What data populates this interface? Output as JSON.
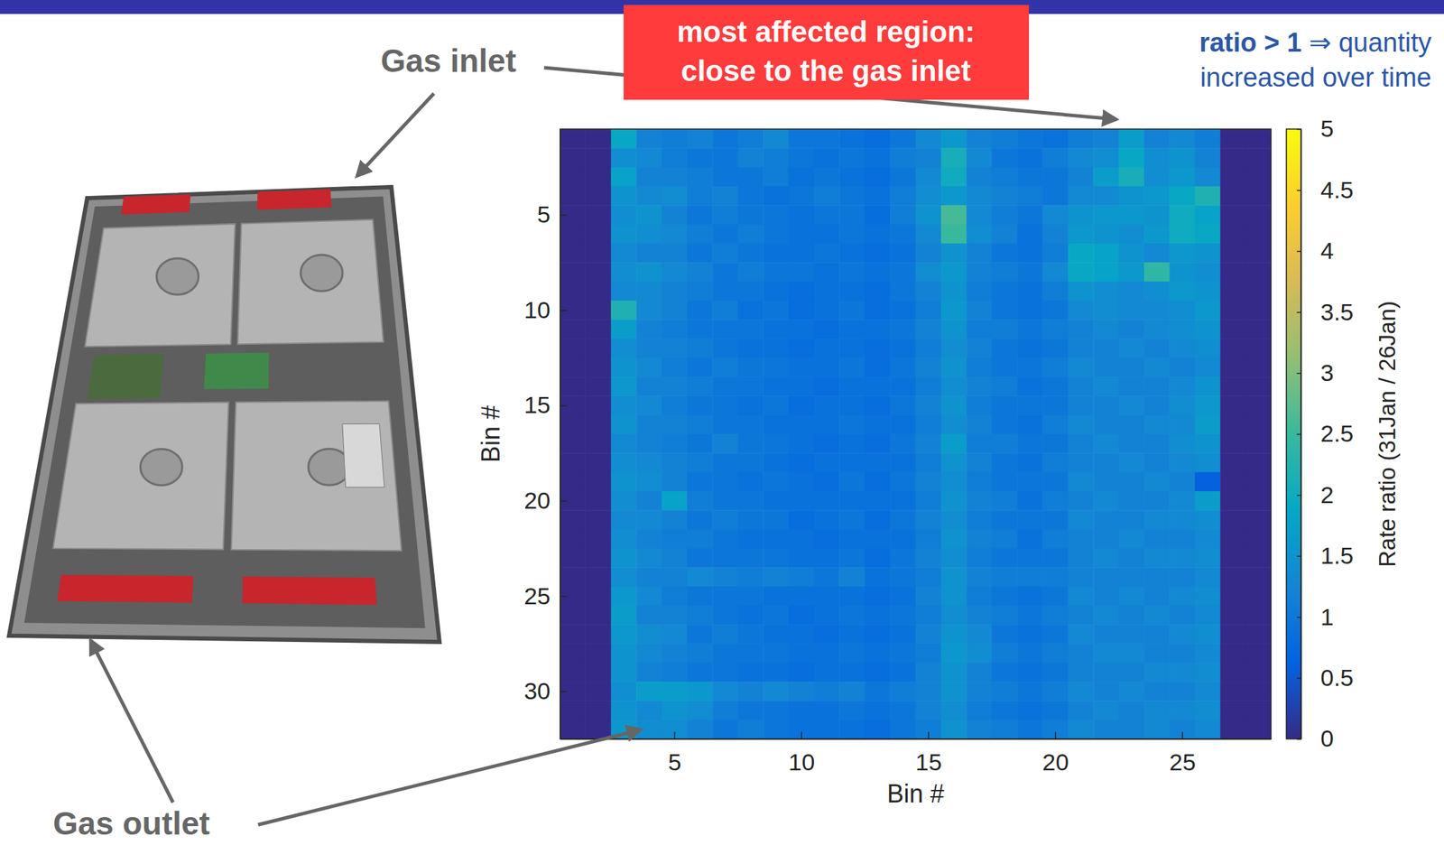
{
  "chart_data": {
    "type": "heatmap",
    "x_label": "Bin #",
    "y_label": "Bin #",
    "xlim": [
      0.5,
      28.5
    ],
    "ylim": [
      0.5,
      32.5
    ],
    "xticks": [
      5,
      10,
      15,
      20,
      25
    ],
    "yticks": [
      5,
      10,
      15,
      20,
      25,
      30
    ],
    "x": [
      1,
      2,
      3,
      4,
      5,
      6,
      7,
      8,
      9,
      10,
      11,
      12,
      13,
      14,
      15,
      16,
      17,
      18,
      19,
      20,
      21,
      22,
      23,
      24,
      25,
      26,
      27,
      28
    ],
    "y": [
      1,
      2,
      3,
      4,
      5,
      6,
      7,
      8,
      9,
      10,
      11,
      12,
      13,
      14,
      15,
      16,
      17,
      18,
      19,
      20,
      21,
      22,
      23,
      24,
      25,
      26,
      27,
      28,
      29,
      30,
      31,
      32
    ],
    "z": [
      [
        0,
        0,
        1.9,
        1.2,
        1.1,
        1.2,
        1.0,
        1.1,
        1.3,
        1.0,
        1.0,
        0.9,
        0.8,
        1.0,
        1.3,
        1.6,
        1.2,
        1.1,
        1.0,
        0.9,
        1.1,
        1.2,
        1.7,
        1.2,
        1.3,
        1.1,
        0,
        0
      ],
      [
        0,
        0,
        1.4,
        1.3,
        1.1,
        1.0,
        1.0,
        1.2,
        1.1,
        1.0,
        0.9,
        1.0,
        0.9,
        1.1,
        1.2,
        2.1,
        1.3,
        1.0,
        0.9,
        1.1,
        1.3,
        1.4,
        1.9,
        1.4,
        1.5,
        1.2,
        0,
        0
      ],
      [
        0,
        0,
        1.8,
        1.2,
        1.2,
        1.1,
        1.0,
        1.0,
        1.1,
        0.9,
        1.0,
        0.9,
        0.8,
        1.0,
        1.3,
        2.0,
        1.2,
        1.1,
        1.0,
        1.0,
        1.2,
        1.7,
        2.1,
        1.4,
        1.6,
        1.3,
        0,
        0
      ],
      [
        0,
        0,
        1.5,
        1.3,
        1.4,
        1.1,
        1.2,
        1.0,
        0.9,
        1.0,
        1.1,
        1.0,
        0.9,
        1.1,
        1.4,
        1.6,
        1.3,
        1.2,
        1.1,
        1.0,
        1.3,
        1.3,
        1.5,
        1.6,
        1.9,
        2.2,
        0,
        0
      ],
      [
        0,
        0,
        1.4,
        1.5,
        1.2,
        1.0,
        1.1,
        1.0,
        1.0,
        0.9,
        1.0,
        1.0,
        0.8,
        1.1,
        1.5,
        2.6,
        1.3,
        1.1,
        1.0,
        1.3,
        1.5,
        1.6,
        1.6,
        1.5,
        2.0,
        1.8,
        0,
        0
      ],
      [
        0,
        0,
        1.5,
        1.4,
        1.3,
        1.1,
        1.0,
        1.1,
        1.0,
        0.9,
        0.9,
        1.0,
        0.9,
        1.0,
        1.3,
        2.5,
        1.4,
        1.2,
        0.9,
        1.2,
        1.6,
        1.5,
        1.4,
        1.6,
        2.0,
        1.9,
        0,
        0
      ],
      [
        0,
        0,
        1.3,
        1.2,
        1.2,
        1.0,
        1.1,
        1.0,
        0.9,
        0.9,
        1.0,
        0.9,
        0.8,
        0.9,
        1.2,
        1.5,
        1.2,
        1.0,
        0.9,
        1.1,
        1.9,
        1.8,
        1.5,
        1.3,
        1.6,
        1.5,
        0,
        0
      ],
      [
        0,
        0,
        1.4,
        1.5,
        1.3,
        1.2,
        1.0,
        1.1,
        1.0,
        1.0,
        0.9,
        1.0,
        0.9,
        1.0,
        1.4,
        1.6,
        1.2,
        1.1,
        1.0,
        1.3,
        1.9,
        1.8,
        1.6,
        2.4,
        1.5,
        1.4,
        0,
        0
      ],
      [
        0,
        0,
        1.3,
        1.3,
        1.2,
        1.1,
        1.0,
        1.0,
        0.9,
        0.8,
        0.9,
        0.9,
        0.8,
        1.0,
        1.2,
        1.5,
        1.1,
        1.0,
        0.9,
        1.1,
        1.5,
        1.4,
        1.3,
        1.4,
        1.6,
        1.5,
        0,
        0
      ],
      [
        0,
        0,
        2.2,
        1.3,
        1.2,
        1.0,
        1.1,
        0.9,
        1.0,
        0.8,
        0.9,
        1.0,
        0.8,
        0.9,
        1.1,
        1.6,
        1.2,
        1.0,
        0.9,
        1.0,
        1.3,
        1.4,
        1.3,
        1.3,
        1.4,
        1.6,
        0,
        0
      ],
      [
        0,
        0,
        1.7,
        1.2,
        1.1,
        1.0,
        1.0,
        1.0,
        0.9,
        0.9,
        0.8,
        0.9,
        0.9,
        1.0,
        1.2,
        1.5,
        1.1,
        1.1,
        1.0,
        1.1,
        1.2,
        1.3,
        1.2,
        1.3,
        1.4,
        1.5,
        0,
        0
      ],
      [
        0,
        0,
        1.4,
        1.2,
        1.2,
        1.1,
        1.0,
        0.9,
        0.9,
        0.8,
        0.9,
        0.9,
        0.8,
        0.9,
        1.1,
        1.4,
        1.2,
        1.0,
        0.9,
        1.0,
        1.2,
        1.2,
        1.3,
        1.2,
        1.3,
        1.4,
        0,
        0
      ],
      [
        0,
        0,
        1.5,
        1.3,
        1.1,
        1.0,
        1.1,
        1.0,
        1.0,
        0.9,
        0.9,
        1.0,
        0.8,
        1.0,
        1.2,
        1.5,
        1.1,
        1.0,
        1.0,
        1.1,
        1.3,
        1.2,
        1.2,
        1.3,
        1.2,
        1.3,
        0,
        0
      ],
      [
        0,
        0,
        1.6,
        1.2,
        1.2,
        1.1,
        1.0,
        1.0,
        0.9,
        0.9,
        0.8,
        0.9,
        0.9,
        0.9,
        1.1,
        1.4,
        1.2,
        1.1,
        0.9,
        1.0,
        1.2,
        1.3,
        1.2,
        1.2,
        1.3,
        1.5,
        0,
        0
      ],
      [
        0,
        0,
        1.4,
        1.3,
        1.1,
        1.0,
        1.0,
        0.9,
        1.0,
        0.8,
        0.9,
        0.9,
        0.8,
        1.0,
        1.2,
        1.5,
        1.1,
        1.0,
        1.0,
        1.0,
        1.2,
        1.2,
        1.3,
        1.2,
        1.4,
        1.6,
        0,
        0
      ],
      [
        0,
        0,
        1.5,
        1.2,
        1.2,
        1.1,
        1.0,
        1.0,
        0.9,
        0.9,
        0.9,
        1.0,
        0.9,
        0.9,
        1.1,
        1.4,
        1.2,
        1.0,
        0.9,
        1.1,
        1.3,
        1.2,
        1.2,
        1.3,
        1.3,
        1.7,
        0,
        0
      ],
      [
        0,
        0,
        1.3,
        1.2,
        1.1,
        1.0,
        1.2,
        1.0,
        1.0,
        0.9,
        0.8,
        0.9,
        0.8,
        1.0,
        1.2,
        1.7,
        1.1,
        1.1,
        1.0,
        1.0,
        1.2,
        1.3,
        1.2,
        1.2,
        1.4,
        1.5,
        0,
        0
      ],
      [
        0,
        0,
        1.4,
        1.3,
        1.2,
        1.1,
        1.0,
        1.0,
        0.9,
        0.8,
        0.9,
        0.9,
        0.9,
        0.9,
        1.1,
        1.5,
        1.2,
        1.0,
        0.9,
        1.1,
        1.2,
        1.2,
        1.3,
        1.2,
        1.3,
        1.4,
        0,
        0
      ],
      [
        0,
        0,
        1.5,
        1.4,
        1.2,
        1.0,
        1.0,
        0.9,
        1.0,
        0.9,
        0.8,
        1.0,
        0.8,
        1.0,
        1.2,
        1.4,
        1.1,
        1.0,
        1.0,
        1.0,
        1.3,
        1.2,
        1.2,
        1.3,
        1.2,
        0.6,
        0,
        0
      ],
      [
        0,
        0,
        1.4,
        1.2,
        1.8,
        1.1,
        1.0,
        1.0,
        0.9,
        0.9,
        0.9,
        0.9,
        0.9,
        0.9,
        1.1,
        1.5,
        1.2,
        1.1,
        0.9,
        1.1,
        1.2,
        1.3,
        1.2,
        1.2,
        1.3,
        1.7,
        0,
        0
      ],
      [
        0,
        0,
        1.3,
        1.3,
        1.2,
        1.0,
        1.1,
        1.0,
        1.0,
        0.8,
        0.9,
        1.0,
        0.8,
        1.0,
        1.2,
        1.4,
        1.1,
        1.0,
        1.0,
        1.0,
        1.3,
        1.2,
        1.2,
        1.3,
        1.3,
        1.4,
        0,
        0
      ],
      [
        0,
        0,
        1.4,
        1.2,
        1.1,
        1.1,
        1.0,
        0.9,
        0.9,
        0.9,
        0.8,
        0.9,
        0.9,
        0.9,
        1.1,
        1.5,
        1.2,
        1.1,
        0.9,
        1.1,
        1.2,
        1.2,
        1.3,
        1.2,
        1.2,
        1.3,
        0,
        0
      ],
      [
        0,
        0,
        1.5,
        1.3,
        1.2,
        1.0,
        1.0,
        1.0,
        1.0,
        0.9,
        0.9,
        1.0,
        0.8,
        1.0,
        1.2,
        1.4,
        1.1,
        1.0,
        1.0,
        1.0,
        1.2,
        1.3,
        1.2,
        1.3,
        1.3,
        1.4,
        0,
        0
      ],
      [
        0,
        0,
        1.4,
        1.2,
        1.2,
        1.3,
        1.2,
        1.1,
        1.2,
        1.1,
        1.0,
        1.2,
        0.9,
        1.0,
        1.1,
        1.5,
        1.2,
        1.1,
        1.1,
        1.1,
        1.2,
        1.2,
        1.2,
        1.2,
        1.2,
        1.3,
        0,
        0
      ],
      [
        0,
        0,
        1.6,
        1.3,
        1.1,
        1.0,
        1.0,
        1.0,
        0.9,
        0.9,
        0.9,
        0.9,
        0.8,
        0.9,
        1.2,
        1.5,
        1.1,
        1.0,
        0.9,
        1.0,
        1.3,
        1.2,
        1.3,
        1.2,
        1.3,
        1.4,
        0,
        0
      ],
      [
        0,
        0,
        1.7,
        1.2,
        1.2,
        1.1,
        1.0,
        0.9,
        1.0,
        0.8,
        0.9,
        1.0,
        0.9,
        1.0,
        1.1,
        1.4,
        1.2,
        1.1,
        1.0,
        1.1,
        1.2,
        1.3,
        1.2,
        1.3,
        1.2,
        1.3,
        0,
        0
      ],
      [
        0,
        0,
        1.6,
        1.4,
        1.3,
        1.0,
        1.1,
        1.0,
        0.9,
        0.9,
        0.8,
        0.9,
        0.8,
        0.9,
        1.2,
        1.5,
        1.3,
        1.0,
        0.9,
        1.0,
        1.3,
        1.2,
        1.2,
        1.2,
        1.3,
        1.4,
        0,
        0
      ],
      [
        0,
        0,
        1.5,
        1.3,
        1.2,
        1.1,
        1.0,
        1.0,
        1.0,
        0.9,
        0.9,
        1.0,
        0.9,
        1.0,
        1.1,
        1.6,
        1.4,
        1.1,
        1.0,
        1.1,
        1.2,
        1.3,
        1.3,
        1.2,
        1.2,
        1.3,
        0,
        0
      ],
      [
        0,
        0,
        1.5,
        1.2,
        1.1,
        1.0,
        1.0,
        0.9,
        0.9,
        0.8,
        0.9,
        0.9,
        0.8,
        0.9,
        1.2,
        1.5,
        1.2,
        1.0,
        0.9,
        1.0,
        1.2,
        1.2,
        1.2,
        1.3,
        1.3,
        1.4,
        0,
        0
      ],
      [
        0,
        0,
        1.4,
        1.7,
        1.7,
        1.6,
        1.3,
        1.2,
        1.3,
        1.2,
        1.1,
        1.2,
        1.0,
        1.1,
        1.2,
        1.5,
        1.2,
        1.1,
        1.0,
        1.1,
        1.3,
        1.2,
        1.3,
        1.2,
        1.2,
        1.3,
        0,
        0
      ],
      [
        0,
        0,
        1.5,
        1.3,
        1.5,
        1.4,
        1.1,
        1.0,
        1.0,
        0.9,
        0.9,
        1.0,
        0.9,
        1.0,
        1.2,
        1.4,
        1.1,
        1.0,
        0.9,
        1.0,
        1.2,
        1.3,
        1.2,
        1.3,
        1.3,
        1.4,
        0,
        0
      ],
      [
        0,
        0,
        1.6,
        1.4,
        1.4,
        1.2,
        1.0,
        1.1,
        1.0,
        0.9,
        0.9,
        0.9,
        0.8,
        1.0,
        1.1,
        1.5,
        1.2,
        1.1,
        1.0,
        1.1,
        1.3,
        1.2,
        1.2,
        1.3,
        1.2,
        1.3,
        0,
        0
      ]
    ],
    "colorbar": {
      "label": "Rate ratio (31Jan / 26Jan)",
      "range": [
        0,
        5
      ],
      "ticks": [
        0,
        0.5,
        1,
        1.5,
        2,
        2.5,
        3,
        3.5,
        4,
        4.5,
        5
      ]
    },
    "annotations": [
      {
        "text": "Gas inlet"
      },
      {
        "text": "Gas outlet"
      },
      {
        "lines": [
          "most affected region:",
          "close to the gas inlet"
        ]
      },
      {
        "bold": "ratio > 1",
        "lines": [
          "⇒ quantity",
          "increased over time"
        ]
      }
    ]
  }
}
